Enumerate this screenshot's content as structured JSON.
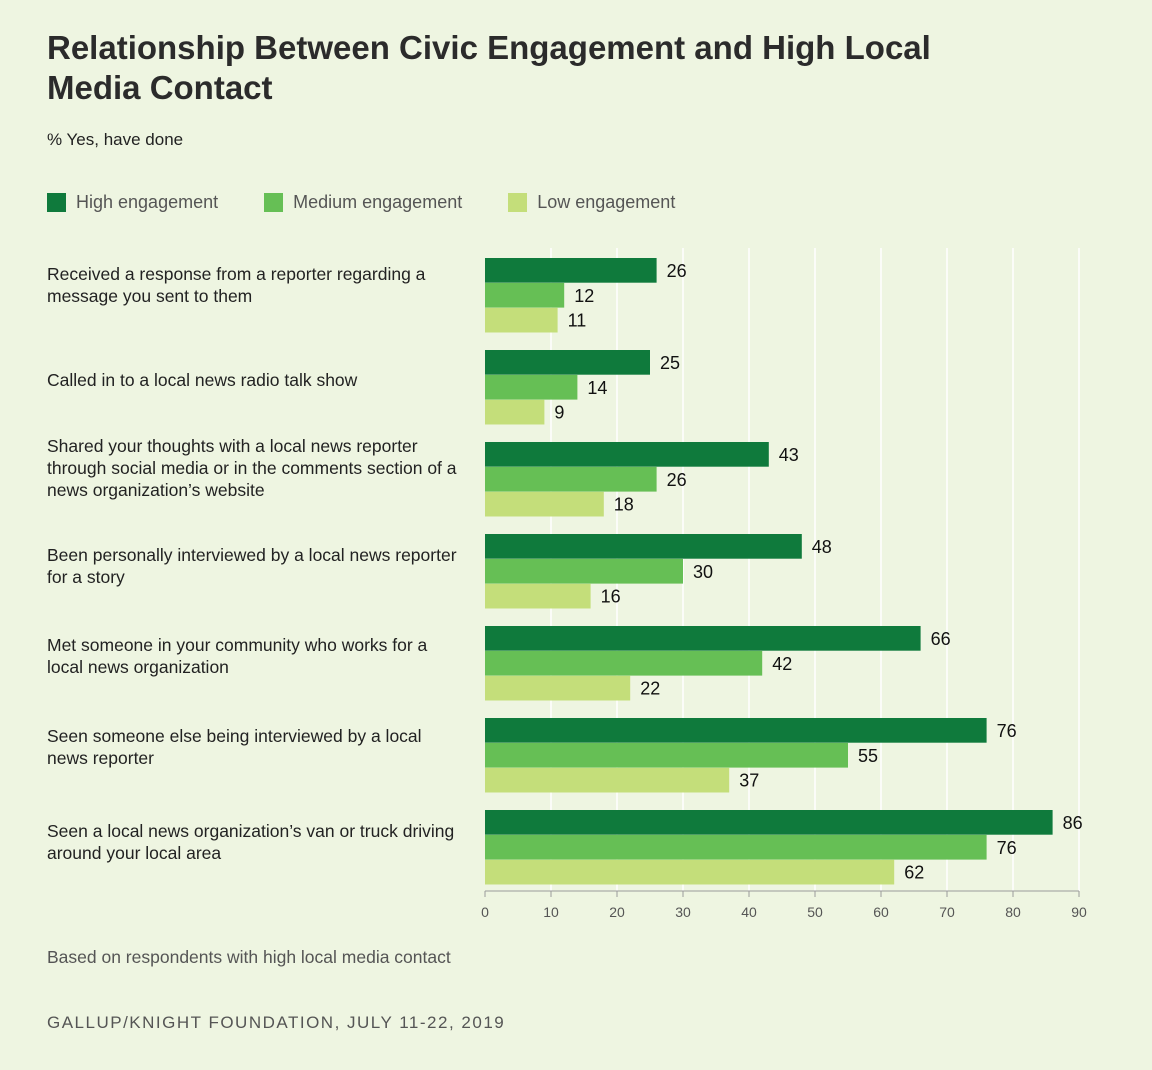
{
  "header": {
    "title": "Relationship Between Civic Engagement and High Local Media Contact",
    "subtitle": "% Yes, have done"
  },
  "footer": {
    "note": "Based on respondents with high local media contact",
    "source": "GALLUP/KNIGHT FOUNDATION, JULY 11-22, 2019"
  },
  "chart_data": {
    "type": "bar",
    "orientation": "horizontal",
    "categories": [
      "Received a response from a reporter regarding a message you sent to them",
      "Called in to a local news radio talk show",
      "Shared your thoughts with a local news reporter through social media or in the comments section of a news organization’s website",
      "Been personally interviewed by a local news reporter for a story",
      "Met someone in your community who works for a local news organization",
      "Seen someone else being interviewed by a local news reporter",
      "Seen a local news organization’s van or truck driving around your local area"
    ],
    "series": [
      {
        "name": "High engagement",
        "color": "#0f7a3c",
        "values": [
          26,
          25,
          43,
          48,
          66,
          76,
          86
        ]
      },
      {
        "name": "Medium engagement",
        "color": "#66bf55",
        "values": [
          12,
          14,
          26,
          30,
          42,
          55,
          76
        ]
      },
      {
        "name": "Low engagement",
        "color": "#c4de7a",
        "values": [
          11,
          9,
          18,
          16,
          22,
          37,
          62
        ]
      }
    ],
    "xlim": [
      0,
      90
    ],
    "xticks": [
      0,
      10,
      20,
      30,
      40,
      50,
      60,
      70,
      80,
      90
    ],
    "grid": true,
    "legend_position": "top"
  }
}
